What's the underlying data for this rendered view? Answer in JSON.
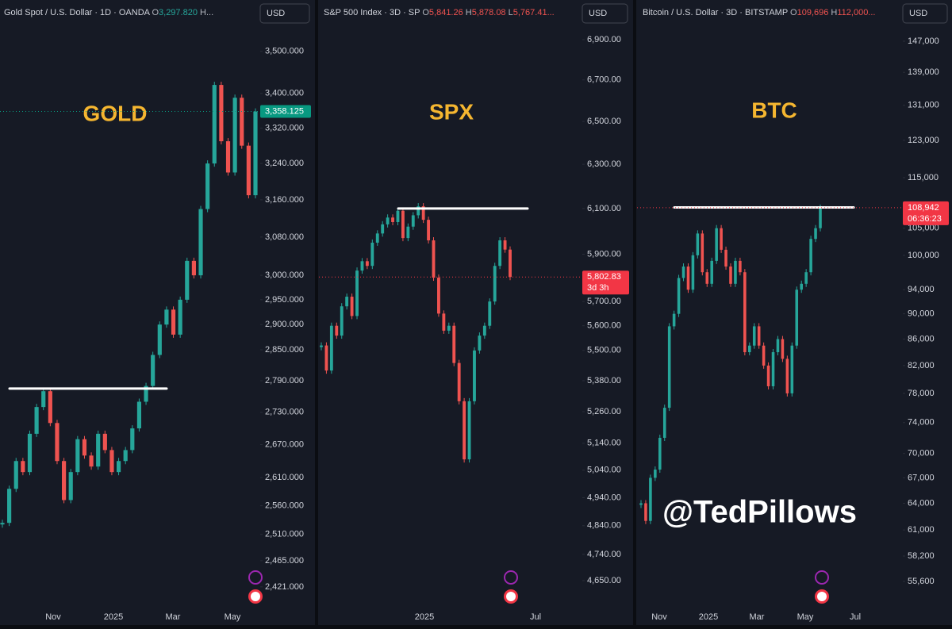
{
  "watermark": "@TedPillows",
  "chart_data": [
    {
      "type": "candlestick",
      "header": [
        {
          "text": "Gold Spot / U.S. Dollar · 1D · OANDA ",
          "color": "#d1d4dc"
        },
        {
          "text": "O",
          "color": "#b2b5be"
        },
        {
          "text": "3,297.820",
          "color": "#26a69a"
        },
        {
          "text": " H...",
          "color": "#b2b5be"
        }
      ],
      "currency": "USD",
      "title": "GOLD",
      "log": true,
      "ylim": [
        2388,
        3567
      ],
      "yticks": [
        {
          "value": 3500,
          "label": "3,500.000"
        },
        {
          "value": 3400,
          "label": "3,400.000"
        },
        {
          "value": 3320,
          "label": "3,320.000"
        },
        {
          "value": 3240,
          "label": "3,240.000"
        },
        {
          "value": 3160,
          "label": "3,160.000"
        },
        {
          "value": 3080,
          "label": "3,080.000"
        },
        {
          "value": 3000,
          "label": "3,000.000"
        },
        {
          "value": 2950,
          "label": "2,950.000"
        },
        {
          "value": 2900,
          "label": "2,900.000"
        },
        {
          "value": 2850,
          "label": "2,850.000"
        },
        {
          "value": 2790,
          "label": "2,790.000"
        },
        {
          "value": 2730,
          "label": "2,730.000"
        },
        {
          "value": 2670,
          "label": "2,670.000"
        },
        {
          "value": 2610,
          "label": "2,610.000"
        },
        {
          "value": 2560,
          "label": "2,560.000"
        },
        {
          "value": 2510,
          "label": "2,510.000"
        },
        {
          "value": 2465,
          "label": "2,465.000"
        },
        {
          "value": 2421,
          "label": "2,421.000"
        }
      ],
      "xlabels": [
        "Nov",
        "2025",
        "Mar",
        "May"
      ],
      "closes": [
        2530,
        2590,
        2640,
        2620,
        2690,
        2740,
        2770,
        2710,
        2640,
        2570,
        2620,
        2680,
        2650,
        2630,
        2690,
        2660,
        2620,
        2640,
        2660,
        2700,
        2750,
        2780,
        2840,
        2900,
        2930,
        2880,
        2950,
        3030,
        3000,
        3140,
        3240,
        3420,
        3290,
        3220,
        3390,
        3280,
        3170,
        3358
      ],
      "level": 2775,
      "last_price": 3358.125,
      "last_price_label": "3,358.125",
      "last_color": "#089981",
      "up_color": "#26a69a",
      "down_color": "#ef5350"
    },
    {
      "type": "candlestick",
      "header": [
        {
          "text": "S&P 500 Index · 3D · SP ",
          "color": "#d1d4dc"
        },
        {
          "text": "O",
          "color": "#b2b5be"
        },
        {
          "text": "5,841.26",
          "color": "#ef5350"
        },
        {
          "text": " H",
          "color": "#b2b5be"
        },
        {
          "text": "5,878.08",
          "color": "#ef5350"
        },
        {
          "text": " L",
          "color": "#b2b5be"
        },
        {
          "text": "5,767.41...",
          "color": "#ef5350"
        }
      ],
      "currency": "USD",
      "title": "SPX",
      "log": true,
      "ylim": [
        4562,
        6980
      ],
      "yticks": [
        {
          "value": 6900,
          "label": "6,900.00"
        },
        {
          "value": 6700,
          "label": "6,700.00"
        },
        {
          "value": 6500,
          "label": "6,500.00"
        },
        {
          "value": 6300,
          "label": "6,300.00"
        },
        {
          "value": 6100,
          "label": "6,100.00"
        },
        {
          "value": 5900,
          "label": "5,900.00"
        },
        {
          "value": 5700,
          "label": "5,700.00"
        },
        {
          "value": 5600,
          "label": "5,600.00"
        },
        {
          "value": 5500,
          "label": "5,500.00"
        },
        {
          "value": 5380,
          "label": "5,380.00"
        },
        {
          "value": 5260,
          "label": "5,260.00"
        },
        {
          "value": 5140,
          "label": "5,140.00"
        },
        {
          "value": 5040,
          "label": "5,040.00"
        },
        {
          "value": 4940,
          "label": "4,940.00"
        },
        {
          "value": 4840,
          "label": "4,840.00"
        },
        {
          "value": 4740,
          "label": "4,740.00"
        },
        {
          "value": 4650,
          "label": "4,650.00"
        }
      ],
      "xlabels": [
        "2025",
        "Jul"
      ],
      "closes": [
        5520,
        5420,
        5600,
        5560,
        5680,
        5720,
        5640,
        5830,
        5870,
        5850,
        5950,
        5990,
        6030,
        6060,
        6040,
        6090,
        5970,
        6020,
        6070,
        6110,
        6050,
        5960,
        5800,
        5650,
        5580,
        5600,
        5450,
        5300,
        5080,
        5300,
        5500,
        5560,
        5600,
        5700,
        5850,
        5960,
        5920,
        5802.83
      ],
      "level": 6100,
      "last_price": 5802.83,
      "last_price_label": "5,802.83",
      "countdown": "3d 3h",
      "last_color": "#f23645",
      "up_color": "#26a69a",
      "down_color": "#ef5350"
    },
    {
      "type": "candlestick",
      "header": [
        {
          "text": "Bitcoin / U.S. Dollar · 3D · BITSTAMP ",
          "color": "#d1d4dc"
        },
        {
          "text": "O",
          "color": "#b2b5be"
        },
        {
          "text": "109,696",
          "color": "#ef5350"
        },
        {
          "text": " H",
          "color": "#b2b5be"
        },
        {
          "text": "112,000...",
          "color": "#ef5350"
        }
      ],
      "currency": "USD",
      "title": "BTC",
      "log": true,
      "ylim": [
        53120,
        151690
      ],
      "yticks": [
        {
          "value": 147000,
          "label": "147,000"
        },
        {
          "value": 139000,
          "label": "139,000"
        },
        {
          "value": 131000,
          "label": "131,000"
        },
        {
          "value": 123000,
          "label": "123,000"
        },
        {
          "value": 115000,
          "label": "115,000"
        },
        {
          "value": 105000,
          "label": "105,000"
        },
        {
          "value": 100000,
          "label": "100,000"
        },
        {
          "value": 94000,
          "label": "94,000"
        },
        {
          "value": 90000,
          "label": "90,000"
        },
        {
          "value": 86000,
          "label": "86,000"
        },
        {
          "value": 82000,
          "label": "82,000"
        },
        {
          "value": 78000,
          "label": "78,000"
        },
        {
          "value": 74000,
          "label": "74,000"
        },
        {
          "value": 70000,
          "label": "70,000"
        },
        {
          "value": 67000,
          "label": "67,000"
        },
        {
          "value": 64000,
          "label": "64,000"
        },
        {
          "value": 61000,
          "label": "61,000"
        },
        {
          "value": 58200,
          "label": "58,200"
        },
        {
          "value": 55600,
          "label": "55,600"
        }
      ],
      "xlabels": [
        "Nov",
        "2025",
        "Mar",
        "May",
        "Jul"
      ],
      "closes": [
        64000,
        62000,
        67000,
        68000,
        72000,
        76000,
        88000,
        90000,
        96000,
        98000,
        94000,
        100000,
        104000,
        97000,
        95000,
        99000,
        105000,
        101000,
        98000,
        95000,
        99000,
        97000,
        84000,
        85000,
        88000,
        85000,
        82000,
        79000,
        84000,
        86000,
        83000,
        78000,
        85000,
        94000,
        95000,
        97000,
        103000,
        105000,
        108942
      ],
      "level": 109000,
      "last_price": 108942,
      "last_price_label": "108,942",
      "countdown": "06:36:23",
      "last_color": "#f23645",
      "up_color": "#26a69a",
      "down_color": "#ef5350"
    }
  ]
}
